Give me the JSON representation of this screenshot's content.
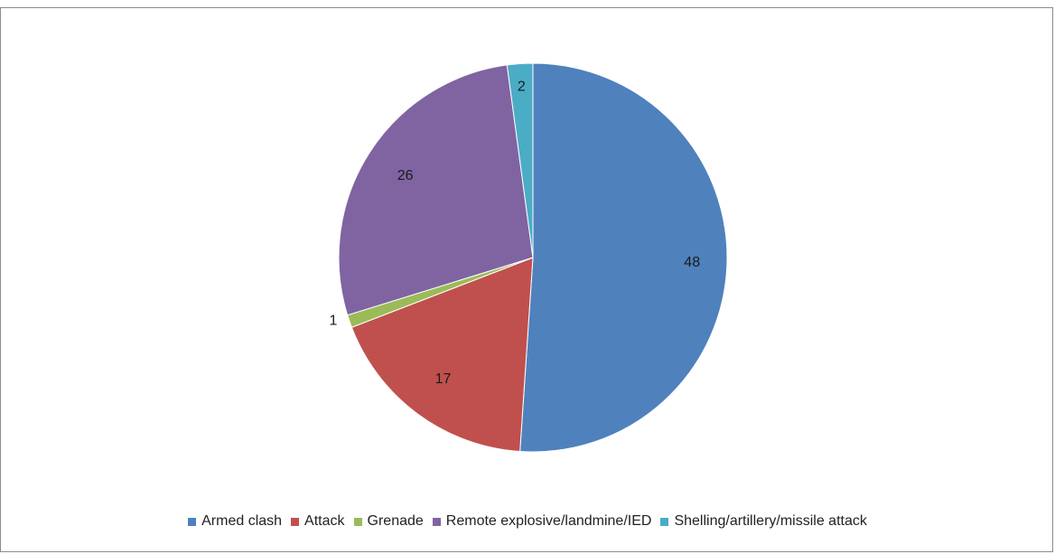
{
  "chart_data": {
    "type": "pie",
    "categories": [
      "Armed clash",
      "Attack",
      "Grenade",
      "Remote explosive/landmine/IED",
      "Shelling/artillery/missile attack"
    ],
    "values": [
      48,
      17,
      1,
      26,
      2
    ],
    "colors": [
      "#4F81BD",
      "#C0504D",
      "#9BBB59",
      "#8064A2",
      "#4BACC6"
    ],
    "data_labels": [
      "48",
      "17",
      "1",
      "26",
      "2"
    ],
    "title": "",
    "legend_position": "bottom",
    "start_angle": "top",
    "direction": "clockwise"
  }
}
